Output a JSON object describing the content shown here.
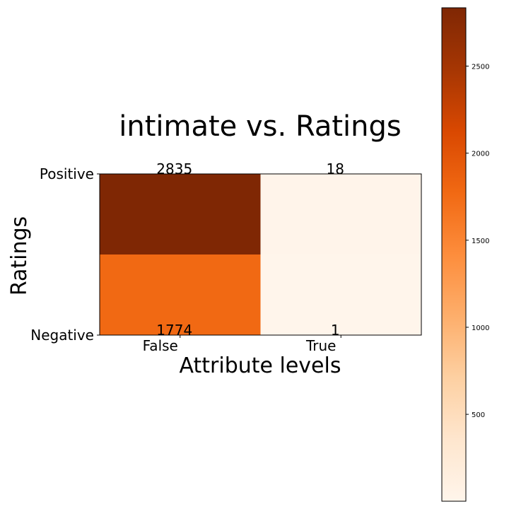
{
  "chart_data": {
    "type": "heatmap",
    "title": "intimate vs. Ratings",
    "xlabel": "Attribute levels",
    "ylabel": "Ratings",
    "x_categories": [
      "False",
      "True"
    ],
    "y_categories": [
      "Positive",
      "Negative"
    ],
    "values": [
      [
        2835,
        18
      ],
      [
        1774,
        1
      ]
    ],
    "value_labels": [
      [
        "2835",
        "18"
      ],
      [
        "1774",
        "1"
      ]
    ],
    "colorbar": {
      "min": 1,
      "max": 2835,
      "ticks": [
        500,
        1000,
        1500,
        2000,
        2500
      ],
      "tick_labels": [
        "500",
        "1000",
        "1500",
        "2000",
        "2500"
      ],
      "colormap": "Oranges",
      "colors": [
        "#fff5eb",
        "#fee6ce",
        "#fdd0a2",
        "#fdae6b",
        "#fd8d3c",
        "#f16913",
        "#d94801",
        "#a63603",
        "#7f2704"
      ]
    }
  }
}
